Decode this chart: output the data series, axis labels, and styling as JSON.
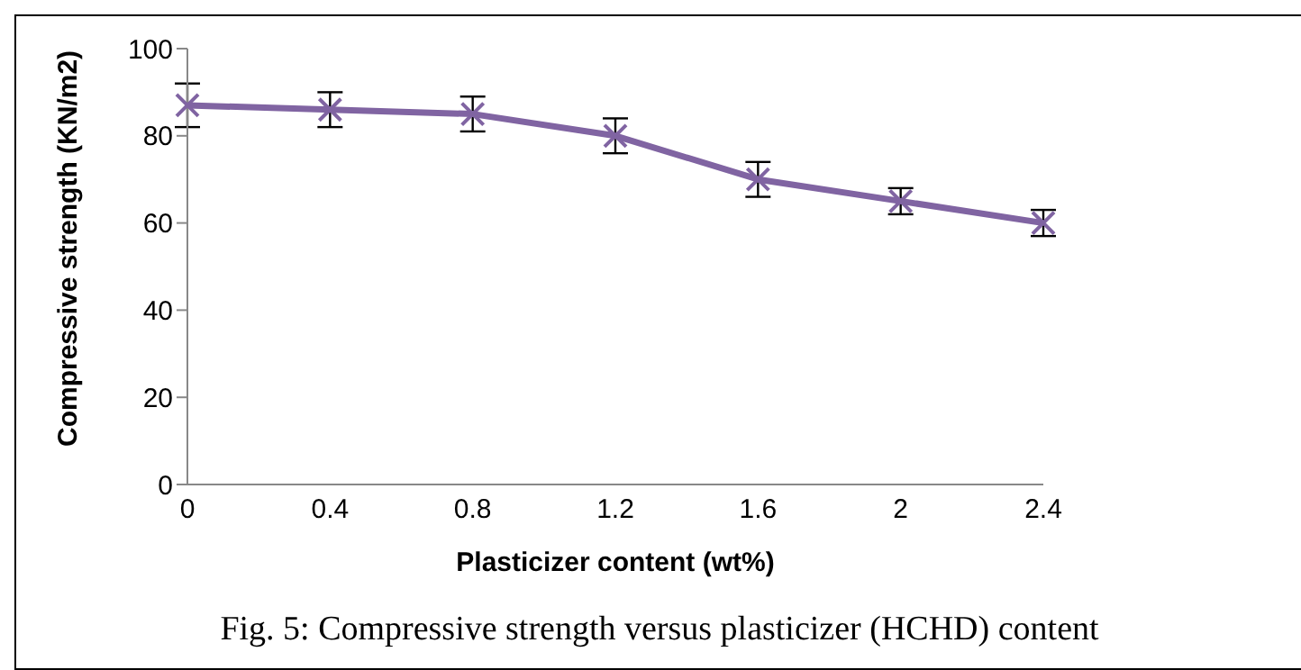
{
  "chart_data": {
    "type": "line",
    "xlabel": "Plasticizer content (wt%)",
    "ylabel": "Compressive strength (KN/m2)",
    "categories": [
      "0",
      "0.4",
      "0.8",
      "1.2",
      "1.6",
      "2",
      "2.4"
    ],
    "series": [
      {
        "color": "#8064a2",
        "values": [
          87,
          86,
          85,
          80,
          70,
          65,
          60
        ],
        "errors": [
          5,
          4,
          4,
          4,
          4,
          3,
          3
        ]
      }
    ],
    "ylim": [
      0,
      100
    ],
    "yticks": [
      0,
      20,
      40,
      60,
      80,
      100
    ],
    "grid": false,
    "legend": false,
    "marker": "cross",
    "line_style": "solid",
    "annotations": [
      "Fig. 5: Compressive strength versus plasticizer (HCHD) content"
    ]
  }
}
